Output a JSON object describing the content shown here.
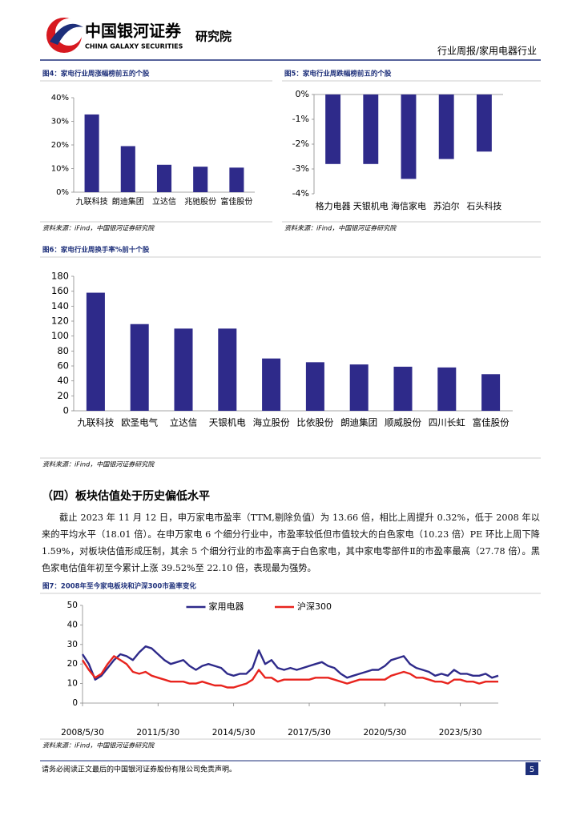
{
  "header": {
    "logo_cn": "中国银河证券",
    "logo_en": "CHINA GALAXY SECURITIES",
    "institute": "研究院",
    "report": "行业周报/家用电器行业"
  },
  "chart_data": [
    {
      "type": "bar",
      "title": "图4：家电行业周涨幅榜前五的个股",
      "categories": [
        "九联科技",
        "朗迪集团",
        "立达信",
        "兆驰股份",
        "富佳股份"
      ],
      "values": [
        32.9,
        19.5,
        11.6,
        10.8,
        10.4
      ],
      "color": "#2e2a8a",
      "ylim": [
        0,
        40
      ],
      "yticks": [
        {
          "value": 0,
          "label": "0%"
        },
        {
          "value": 10,
          "label": "10%"
        },
        {
          "value": 20,
          "label": "20%"
        },
        {
          "value": 30,
          "label": "30%"
        },
        {
          "value": 40,
          "label": "40%"
        }
      ],
      "grid": false,
      "source": "资料来源：iFind，中国银河证券研究院"
    },
    {
      "type": "bar",
      "title": "图5：家电行业周跌幅榜前五的个股",
      "categories": [
        "格力电器",
        "天银机电",
        "海信家电",
        "苏泊尔",
        "石头科技"
      ],
      "values": [
        -2.8,
        -2.8,
        -3.4,
        -2.6,
        -2.3
      ],
      "color": "#2e2a8a",
      "ylim": [
        -4,
        0
      ],
      "yticks": [
        {
          "value": 0,
          "label": "0%"
        },
        {
          "value": -1,
          "label": "-1%"
        },
        {
          "value": -2,
          "label": "-2%"
        },
        {
          "value": -3,
          "label": "-3%"
        },
        {
          "value": -4,
          "label": "-4%"
        }
      ],
      "grid": false,
      "source": "资料来源：iFind，中国银河证券研究院"
    },
    {
      "type": "bar",
      "title": "图6：家电行业周换手率%前十个股",
      "categories": [
        "九联科技",
        "欧圣电气",
        "立达信",
        "天银机电",
        "海立股份",
        "比依股份",
        "朗迪集团",
        "顺威股份",
        "四川长虹",
        "富佳股份"
      ],
      "values": [
        158,
        116,
        110,
        110,
        70,
        65,
        62,
        59,
        58,
        49
      ],
      "color": "#2e2a8a",
      "ylim": [
        0,
        180
      ],
      "yticks": [
        0,
        20,
        40,
        60,
        80,
        100,
        120,
        140,
        160,
        180
      ],
      "grid": false,
      "source": "资料来源：iFind，中国银河证券研究院"
    },
    {
      "type": "line",
      "title": "图7：2008年至今家电板块和沪深300市盈率变化",
      "x": [
        "2008/5/30",
        "2008/8/30",
        "2008/11/30",
        "2009/2/28",
        "2009/5/30",
        "2009/8/30",
        "2009/11/30",
        "2010/2/28",
        "2010/5/30",
        "2010/8/30",
        "2010/11/30",
        "2011/2/28",
        "2011/5/30",
        "2011/8/30",
        "2011/11/30",
        "2012/2/28",
        "2012/5/30",
        "2012/8/30",
        "2012/11/30",
        "2013/2/28",
        "2013/5/30",
        "2013/8/30",
        "2013/11/30",
        "2014/2/28",
        "2014/5/30",
        "2014/8/30",
        "2014/11/30",
        "2015/2/28",
        "2015/5/30",
        "2015/8/30",
        "2015/11/30",
        "2016/2/28",
        "2016/5/30",
        "2016/8/30",
        "2016/11/30",
        "2017/2/28",
        "2017/5/30",
        "2017/8/30",
        "2017/11/30",
        "2018/2/28",
        "2018/5/30",
        "2018/8/30",
        "2018/11/30",
        "2019/2/28",
        "2019/5/30",
        "2019/8/30",
        "2019/11/30",
        "2020/2/28",
        "2020/5/30",
        "2020/8/30",
        "2020/11/30",
        "2021/2/28",
        "2021/5/30",
        "2021/8/30",
        "2021/11/30",
        "2022/2/28",
        "2022/5/30",
        "2022/8/30",
        "2022/11/30",
        "2023/2/28",
        "2023/5/30",
        "2023/8/30",
        "2023/11/30",
        "2024/2/28",
        "2024/5/30",
        "2024/8/30",
        "2024/11/30"
      ],
      "series": [
        {
          "name": "家用电器",
          "color": "#2e2a8a",
          "values": [
            25,
            20,
            12,
            14,
            18,
            22,
            25,
            24,
            22,
            26,
            29,
            28,
            25,
            22,
            20,
            21,
            22,
            19,
            17,
            19,
            20,
            19,
            18,
            15,
            14,
            15,
            15,
            18,
            27,
            20,
            22,
            18,
            17,
            18,
            17,
            18,
            19,
            20,
            21,
            19,
            18,
            15,
            13,
            14,
            15,
            16,
            17,
            17,
            19,
            22,
            23,
            24,
            20,
            18,
            17,
            16,
            14,
            15,
            14,
            17,
            15,
            15,
            14,
            14,
            15,
            13,
            14
          ]
        },
        {
          "name": "沪深300",
          "color": "#e8241e",
          "values": [
            22,
            17,
            13,
            15,
            20,
            24,
            22,
            20,
            16,
            15,
            16,
            14,
            13,
            12,
            11,
            11,
            11,
            10,
            10,
            11,
            10,
            9,
            9,
            8,
            8,
            9,
            10,
            12,
            17,
            13,
            13,
            11,
            12,
            12,
            12,
            12,
            12,
            13,
            13,
            13,
            12,
            11,
            10,
            11,
            12,
            12,
            12,
            12,
            12,
            14,
            15,
            16,
            15,
            13,
            13,
            12,
            11,
            11,
            10,
            12,
            12,
            11,
            11,
            10,
            11,
            11,
            11
          ]
        }
      ],
      "xlim": [
        "2008/5/30",
        "2024/11/30"
      ],
      "xticks": [
        "2008/5/30",
        "2011/5/30",
        "2014/5/30",
        "2017/5/30",
        "2020/5/30",
        "2023/5/30"
      ],
      "ylim": [
        0,
        50
      ],
      "yticks": [
        0,
        10,
        20,
        30,
        40,
        50
      ],
      "grid": false,
      "legend": "top",
      "source": "资料来源：iFind，中国银河证券研究院"
    }
  ],
  "section": {
    "heading": "（四）板块估值处于历史偏低水平",
    "paragraph": "截止 2023 年 11 月 12 日，申万家电市盈率（TTM,剔除负值）为 13.66 倍，相比上周提升 0.32%，低于 2008 年以来的平均水平（18.01 倍）。在申万家电 6 个细分行业中，市盈率较低但市值较大的白色家电（10.23 倍）PE 环比上周下降 1.59%，对板块估值形成压制，其余 5 个细分行业的市盈率高于白色家电，其中家电零部件Ⅱ的市盈率最高（27.78 倍）。黑色家电估值年初至今累计上涨 39.52%至 22.10 倍，表现最为强势。"
  },
  "footer": {
    "disclaimer": "请务必阅读正文最后的中国银河证券股份有限公司免责声明。",
    "page": "5"
  }
}
